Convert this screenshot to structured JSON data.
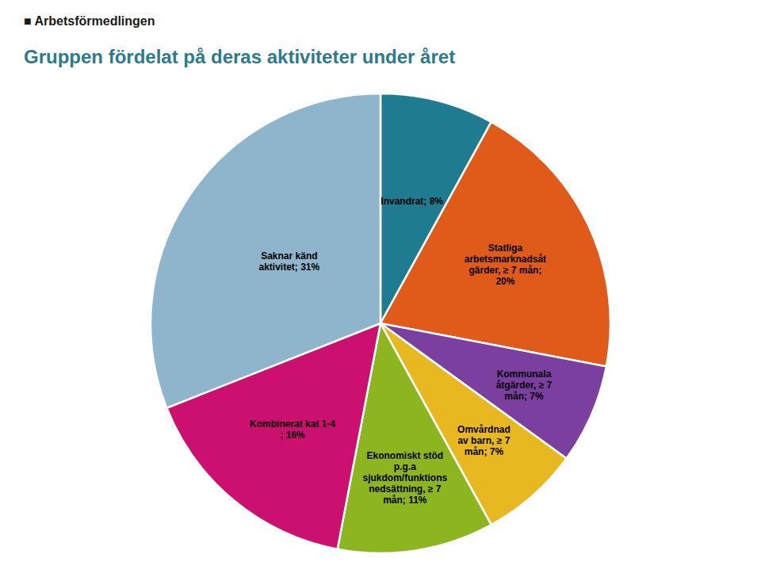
{
  "chart_data": {
    "type": "pie",
    "title": "Gruppen fördelat på deras aktiviteter under året",
    "annotations": [
      "■ Arbetsförmedlingen"
    ],
    "values": [
      8,
      20,
      7,
      7,
      11,
      16,
      31
    ],
    "value_labels": [
      "Invandrat; 8%",
      "Statliga\narbetsmarknadsåt\ngärder, ≥ 7 mån;\n20%",
      "Kommunala\nåtgärder, ≥ 7\nmån; 7%",
      "Omvårdnad\nav barn, ≥ 7\nmån; 7%",
      "Ekonomiskt stöd\np.g.a\nsjukdom/funktions\nnedsättning, ≥ 7\nmån; 11%",
      "Kombinerat kat 1-4\n; 16%",
      "Saknar känd\naktivitet; 31%"
    ],
    "colors": [
      "#1E7B90",
      "#E05A1A",
      "#7B3FA0",
      "#E8B820",
      "#8CB520",
      "#CC1070",
      "#8EB5CC"
    ],
    "data_labels": true
  }
}
